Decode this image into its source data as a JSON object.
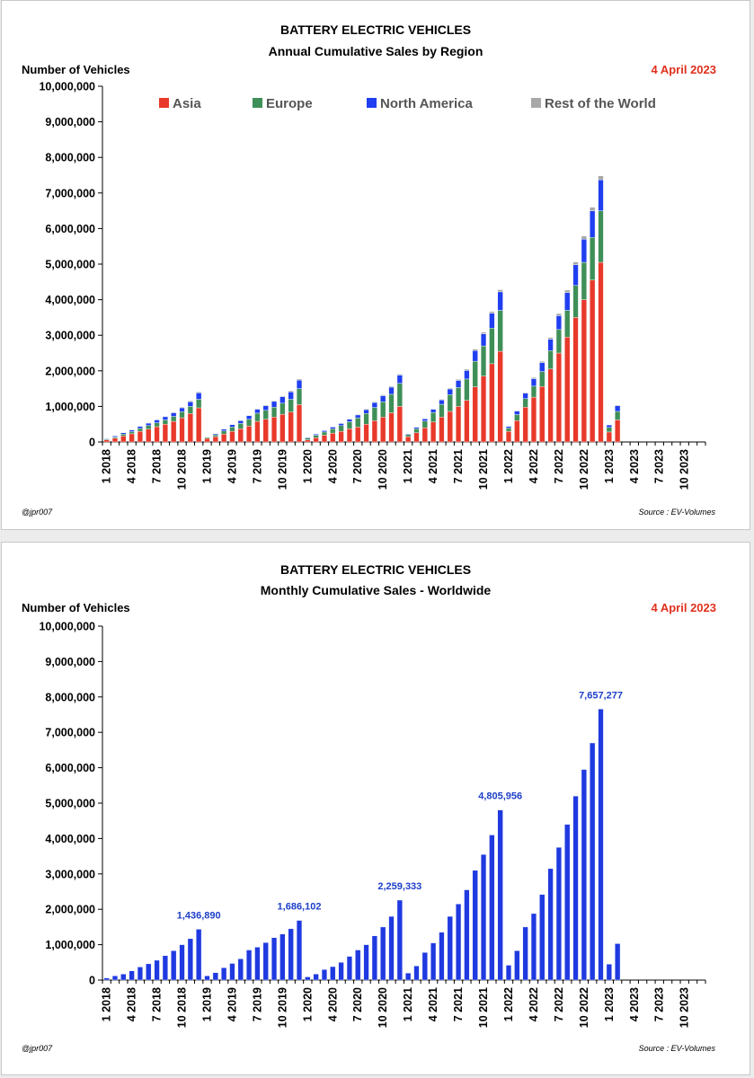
{
  "charts": [
    {
      "title_line1": "BATTERY ELECTRIC VEHICLES",
      "title_line2": "Annual Cumulative Sales by Region",
      "ylabel": "Number of Vehicles",
      "date": "4 April 2023",
      "credit": "@jpr007",
      "source": "Source : EV-Volumes"
    },
    {
      "title_line1": "BATTERY ELECTRIC VEHICLES",
      "title_line2": "Monthly Cumulative Sales - Worldwide",
      "ylabel": "Number of Vehicles",
      "date": "4 April 2023",
      "credit": "@jpr007",
      "source": "Source : EV-Volumes"
    }
  ],
  "colors": {
    "asia": "#e8392a",
    "europe": "#3f8f58",
    "north_america": "#1f3ff0",
    "rest": "#a8a8a8",
    "worldwide": "#1f3ae0"
  },
  "chart_data": [
    {
      "type": "bar",
      "stacked": true,
      "title": "BATTERY ELECTRIC VEHICLES — Annual Cumulative Sales by Region",
      "ylabel": "Number of Vehicles",
      "ylim": [
        0,
        10000000
      ],
      "yticks": [
        0,
        1000000,
        2000000,
        3000000,
        4000000,
        5000000,
        6000000,
        7000000,
        8000000,
        9000000,
        10000000
      ],
      "ytick_labels": [
        "0",
        "1,000,000",
        "2,000,000",
        "3,000,000",
        "4,000,000",
        "5,000,000",
        "6,000,000",
        "7,000,000",
        "8,000,000",
        "9,000,000",
        "10,000,000"
      ],
      "xtick_labels": [
        "1 2018",
        "4 2018",
        "7 2018",
        "10 2018",
        "1 2019",
        "4 2019",
        "7 2019",
        "10 2019",
        "1 2020",
        "4 2020",
        "7 2020",
        "10 2020",
        "1 2021",
        "4 2021",
        "7 2021",
        "10 2021",
        "1 2022",
        "4 2022",
        "7 2022",
        "10 2022",
        "1 2023",
        "4 2023",
        "7 2023",
        "10 2023"
      ],
      "legend": [
        "Asia",
        "Europe",
        "North America",
        "Rest of the World"
      ],
      "legend_position": "top",
      "series": [
        {
          "name": "Asia",
          "values": [
            60000,
            110000,
            170000,
            230000,
            300000,
            360000,
            430000,
            500000,
            580000,
            680000,
            800000,
            960000,
            100000,
            150000,
            220000,
            300000,
            370000,
            450000,
            580000,
            640000,
            700000,
            780000,
            840000,
            1050000,
            60000,
            120000,
            190000,
            250000,
            300000,
            370000,
            420000,
            500000,
            600000,
            700000,
            820000,
            1000000,
            150000,
            260000,
            400000,
            560000,
            700000,
            860000,
            1000000,
            1170000,
            1550000,
            1850000,
            2200000,
            2550000,
            300000,
            600000,
            980000,
            1260000,
            1560000,
            2050000,
            2500000,
            2950000,
            3500000,
            4000000,
            4550000,
            5050000,
            280000,
            620000
          ]
        },
        {
          "name": "Europe",
          "values": [
            20000,
            30000,
            50000,
            60000,
            80000,
            100000,
            110000,
            120000,
            140000,
            170000,
            200000,
            240000,
            30000,
            50000,
            90000,
            120000,
            150000,
            190000,
            230000,
            250000,
            280000,
            310000,
            360000,
            450000,
            50000,
            70000,
            90000,
            120000,
            160000,
            200000,
            260000,
            300000,
            370000,
            430000,
            520000,
            650000,
            60000,
            110000,
            190000,
            270000,
            360000,
            470000,
            530000,
            600000,
            720000,
            850000,
            1000000,
            1150000,
            90000,
            170000,
            240000,
            310000,
            420000,
            520000,
            660000,
            750000,
            900000,
            1050000,
            1200000,
            1450000,
            130000,
            240000
          ]
        },
        {
          "name": "North America",
          "values": [
            20000,
            30000,
            40000,
            50000,
            60000,
            70000,
            80000,
            90000,
            100000,
            110000,
            130000,
            180000,
            10000,
            30000,
            50000,
            70000,
            80000,
            100000,
            110000,
            130000,
            160000,
            180000,
            210000,
            240000,
            20000,
            30000,
            40000,
            50000,
            60000,
            70000,
            80000,
            110000,
            140000,
            170000,
            200000,
            230000,
            20000,
            40000,
            60000,
            90000,
            120000,
            160000,
            200000,
            240000,
            300000,
            340000,
            420000,
            520000,
            50000,
            100000,
            150000,
            210000,
            250000,
            320000,
            390000,
            500000,
            580000,
            650000,
            750000,
            870000,
            70000,
            160000
          ]
        },
        {
          "name": "Rest of the World",
          "values": [
            3000,
            5000,
            7000,
            9000,
            11000,
            13000,
            15000,
            17000,
            20000,
            22000,
            25000,
            30000,
            3000,
            5000,
            8000,
            10000,
            12000,
            15000,
            18000,
            20000,
            22000,
            25000,
            28000,
            30000,
            4000,
            6000,
            8000,
            10000,
            12000,
            15000,
            18000,
            20000,
            22000,
            25000,
            28000,
            30000,
            5000,
            8000,
            12000,
            15000,
            20000,
            25000,
            30000,
            35000,
            40000,
            45000,
            50000,
            60000,
            8000,
            15000,
            22000,
            30000,
            40000,
            50000,
            60000,
            70000,
            80000,
            90000,
            100000,
            110000,
            10000,
            20000
          ]
        }
      ]
    },
    {
      "type": "bar",
      "title": "BATTERY ELECTRIC VEHICLES — Monthly Cumulative Sales - Worldwide",
      "ylabel": "Number of Vehicles",
      "ylim": [
        0,
        10000000
      ],
      "yticks": [
        0,
        1000000,
        2000000,
        3000000,
        4000000,
        5000000,
        6000000,
        7000000,
        8000000,
        9000000,
        10000000
      ],
      "ytick_labels": [
        "0",
        "1,000,000",
        "2,000,000",
        "3,000,000",
        "4,000,000",
        "5,000,000",
        "6,000,000",
        "7,000,000",
        "8,000,000",
        "9,000,000",
        "10,000,000"
      ],
      "xtick_labels": [
        "1 2018",
        "4 2018",
        "7 2018",
        "10 2018",
        "1 2019",
        "4 2019",
        "7 2019",
        "10 2019",
        "1 2020",
        "4 2020",
        "7 2020",
        "10 2020",
        "1 2021",
        "4 2021",
        "7 2021",
        "10 2021",
        "1 2022",
        "4 2022",
        "7 2022",
        "10 2022",
        "1 2023",
        "4 2023",
        "7 2023",
        "10 2023"
      ],
      "series": [
        {
          "name": "Worldwide",
          "values": [
            60000,
            120000,
            170000,
            260000,
            370000,
            460000,
            560000,
            690000,
            830000,
            1000000,
            1170000,
            1436890,
            120000,
            210000,
            350000,
            470000,
            600000,
            850000,
            930000,
            1060000,
            1200000,
            1300000,
            1450000,
            1686102,
            90000,
            170000,
            300000,
            380000,
            500000,
            670000,
            850000,
            1000000,
            1250000,
            1500000,
            1800000,
            2259333,
            200000,
            400000,
            780000,
            1050000,
            1350000,
            1800000,
            2150000,
            2550000,
            3100000,
            3550000,
            4100000,
            4805956,
            420000,
            830000,
            1500000,
            1880000,
            2420000,
            3150000,
            3750000,
            4400000,
            5200000,
            5950000,
            6700000,
            7657277,
            450000,
            1030000
          ]
        }
      ],
      "data_labels": [
        {
          "index": 11,
          "text": "1,436,890"
        },
        {
          "index": 23,
          "text": "1,686,102"
        },
        {
          "index": 35,
          "text": "2,259,333"
        },
        {
          "index": 47,
          "text": "4,805,956"
        },
        {
          "index": 59,
          "text": "7,657,277"
        }
      ]
    }
  ]
}
